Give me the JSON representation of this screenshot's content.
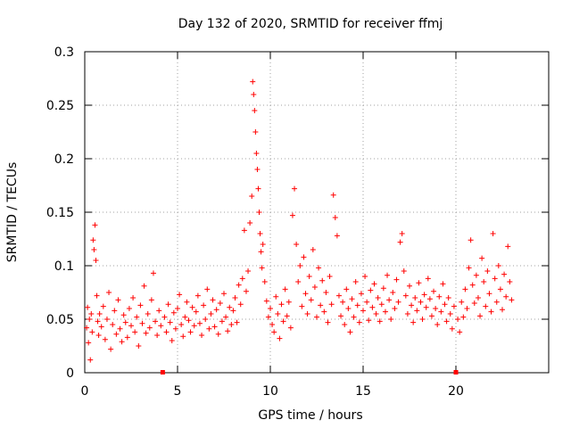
{
  "chart_data": {
    "type": "scatter",
    "title": "Day 132 of 2020, SRMTID for receiver ffmj",
    "xlabel": "GPS time / hours",
    "ylabel": "SRMTID / TECUs",
    "xlim": [
      0,
      25
    ],
    "ylim": [
      0,
      0.3
    ],
    "xticks": [
      0,
      5,
      10,
      15,
      20
    ],
    "xtick_labels": [
      "0",
      "5",
      "10",
      "15",
      "20"
    ],
    "yticks": [
      0,
      0.05,
      0.1,
      0.15,
      0.2,
      0.25,
      0.3
    ],
    "ytick_labels": [
      "0",
      "0.05",
      "0.1",
      "0.15",
      "0.2",
      "0.25",
      "0.3"
    ],
    "grid": true,
    "marker": "+",
    "color": "#ff0000",
    "gap_markers_x": [
      4.2,
      20.0
    ],
    "series": [
      {
        "name": "SRMTID",
        "points": [
          [
            0.1,
            0.042
          ],
          [
            0.15,
            0.061
          ],
          [
            0.2,
            0.028
          ],
          [
            0.25,
            0.05
          ],
          [
            0.3,
            0.012
          ],
          [
            0.35,
            0.055
          ],
          [
            0.4,
            0.038
          ],
          [
            0.45,
            0.124
          ],
          [
            0.5,
            0.115
          ],
          [
            0.55,
            0.138
          ],
          [
            0.6,
            0.105
          ],
          [
            0.65,
            0.072
          ],
          [
            0.7,
            0.048
          ],
          [
            0.75,
            0.035
          ],
          [
            0.8,
            0.055
          ],
          [
            0.9,
            0.043
          ],
          [
            1.0,
            0.062
          ],
          [
            1.1,
            0.031
          ],
          [
            1.2,
            0.05
          ],
          [
            1.3,
            0.075
          ],
          [
            1.4,
            0.022
          ],
          [
            1.5,
            0.045
          ],
          [
            1.6,
            0.058
          ],
          [
            1.7,
            0.036
          ],
          [
            1.8,
            0.068
          ],
          [
            1.9,
            0.041
          ],
          [
            2.0,
            0.029
          ],
          [
            2.1,
            0.054
          ],
          [
            2.2,
            0.047
          ],
          [
            2.3,
            0.033
          ],
          [
            2.4,
            0.06
          ],
          [
            2.5,
            0.044
          ],
          [
            2.6,
            0.07
          ],
          [
            2.7,
            0.038
          ],
          [
            2.8,
            0.052
          ],
          [
            2.9,
            0.025
          ],
          [
            3.0,
            0.063
          ],
          [
            3.1,
            0.046
          ],
          [
            3.2,
            0.081
          ],
          [
            3.3,
            0.037
          ],
          [
            3.4,
            0.055
          ],
          [
            3.5,
            0.042
          ],
          [
            3.6,
            0.068
          ],
          [
            3.7,
            0.093
          ],
          [
            3.8,
            0.048
          ],
          [
            3.9,
            0.035
          ],
          [
            4.0,
            0.058
          ],
          [
            4.1,
            0.044
          ],
          [
            4.3,
            0.052
          ],
          [
            4.4,
            0.038
          ],
          [
            4.5,
            0.064
          ],
          [
            4.6,
            0.047
          ],
          [
            4.7,
            0.03
          ],
          [
            4.8,
            0.056
          ],
          [
            4.9,
            0.041
          ],
          [
            5.0,
            0.06
          ],
          [
            5.1,
            0.073
          ],
          [
            5.2,
            0.045
          ],
          [
            5.3,
            0.034
          ],
          [
            5.4,
            0.052
          ],
          [
            5.5,
            0.066
          ],
          [
            5.6,
            0.049
          ],
          [
            5.7,
            0.038
          ],
          [
            5.8,
            0.061
          ],
          [
            5.9,
            0.044
          ],
          [
            6.0,
            0.057
          ],
          [
            6.1,
            0.072
          ],
          [
            6.2,
            0.046
          ],
          [
            6.3,
            0.035
          ],
          [
            6.4,
            0.063
          ],
          [
            6.5,
            0.05
          ],
          [
            6.6,
            0.078
          ],
          [
            6.7,
            0.041
          ],
          [
            6.8,
            0.055
          ],
          [
            6.9,
            0.068
          ],
          [
            7.0,
            0.043
          ],
          [
            7.1,
            0.059
          ],
          [
            7.2,
            0.036
          ],
          [
            7.3,
            0.065
          ],
          [
            7.4,
            0.048
          ],
          [
            7.5,
            0.074
          ],
          [
            7.6,
            0.052
          ],
          [
            7.7,
            0.039
          ],
          [
            7.8,
            0.061
          ],
          [
            7.9,
            0.045
          ],
          [
            8.0,
            0.058
          ],
          [
            8.1,
            0.07
          ],
          [
            8.2,
            0.047
          ],
          [
            8.3,
            0.082
          ],
          [
            8.4,
            0.064
          ],
          [
            8.5,
            0.088
          ],
          [
            8.6,
            0.133
          ],
          [
            8.7,
            0.076
          ],
          [
            8.8,
            0.095
          ],
          [
            8.9,
            0.14
          ],
          [
            9.0,
            0.165
          ],
          [
            9.05,
            0.272
          ],
          [
            9.1,
            0.26
          ],
          [
            9.15,
            0.245
          ],
          [
            9.2,
            0.225
          ],
          [
            9.25,
            0.205
          ],
          [
            9.3,
            0.19
          ],
          [
            9.35,
            0.172
          ],
          [
            9.4,
            0.15
          ],
          [
            9.45,
            0.13
          ],
          [
            9.5,
            0.113
          ],
          [
            9.55,
            0.098
          ],
          [
            9.6,
            0.12
          ],
          [
            9.7,
            0.085
          ],
          [
            9.8,
            0.067
          ],
          [
            9.9,
            0.052
          ],
          [
            10.0,
            0.06
          ],
          [
            10.1,
            0.045
          ],
          [
            10.2,
            0.038
          ],
          [
            10.3,
            0.071
          ],
          [
            10.4,
            0.055
          ],
          [
            10.5,
            0.032
          ],
          [
            10.6,
            0.064
          ],
          [
            10.7,
            0.048
          ],
          [
            10.8,
            0.078
          ],
          [
            10.9,
            0.053
          ],
          [
            11.0,
            0.066
          ],
          [
            11.1,
            0.042
          ],
          [
            11.2,
            0.147
          ],
          [
            11.3,
            0.172
          ],
          [
            11.4,
            0.12
          ],
          [
            11.5,
            0.085
          ],
          [
            11.6,
            0.1
          ],
          [
            11.7,
            0.062
          ],
          [
            11.8,
            0.108
          ],
          [
            11.9,
            0.074
          ],
          [
            12.0,
            0.055
          ],
          [
            12.1,
            0.09
          ],
          [
            12.2,
            0.068
          ],
          [
            12.3,
            0.115
          ],
          [
            12.4,
            0.08
          ],
          [
            12.5,
            0.052
          ],
          [
            12.6,
            0.098
          ],
          [
            12.7,
            0.063
          ],
          [
            12.8,
            0.086
          ],
          [
            12.9,
            0.057
          ],
          [
            13.0,
            0.075
          ],
          [
            13.1,
            0.047
          ],
          [
            13.2,
            0.09
          ],
          [
            13.3,
            0.064
          ],
          [
            13.4,
            0.166
          ],
          [
            13.5,
            0.145
          ],
          [
            13.6,
            0.128
          ],
          [
            13.7,
            0.072
          ],
          [
            13.8,
            0.053
          ],
          [
            13.9,
            0.066
          ],
          [
            14.0,
            0.045
          ],
          [
            14.1,
            0.078
          ],
          [
            14.2,
            0.06
          ],
          [
            14.3,
            0.038
          ],
          [
            14.4,
            0.069
          ],
          [
            14.5,
            0.052
          ],
          [
            14.6,
            0.085
          ],
          [
            14.7,
            0.063
          ],
          [
            14.8,
            0.047
          ],
          [
            14.9,
            0.074
          ],
          [
            15.0,
            0.058
          ],
          [
            15.1,
            0.09
          ],
          [
            15.2,
            0.066
          ],
          [
            15.3,
            0.049
          ],
          [
            15.4,
            0.077
          ],
          [
            15.5,
            0.061
          ],
          [
            15.6,
            0.083
          ],
          [
            15.7,
            0.055
          ],
          [
            15.8,
            0.07
          ],
          [
            15.9,
            0.048
          ],
          [
            16.0,
            0.064
          ],
          [
            16.1,
            0.079
          ],
          [
            16.2,
            0.057
          ],
          [
            16.3,
            0.091
          ],
          [
            16.4,
            0.068
          ],
          [
            16.5,
            0.05
          ],
          [
            16.6,
            0.075
          ],
          [
            16.7,
            0.06
          ],
          [
            16.8,
            0.087
          ],
          [
            16.9,
            0.066
          ],
          [
            17.0,
            0.122
          ],
          [
            17.1,
            0.13
          ],
          [
            17.2,
            0.095
          ],
          [
            17.3,
            0.072
          ],
          [
            17.4,
            0.055
          ],
          [
            17.5,
            0.081
          ],
          [
            17.6,
            0.063
          ],
          [
            17.7,
            0.047
          ],
          [
            17.8,
            0.07
          ],
          [
            17.9,
            0.058
          ],
          [
            18.0,
            0.084
          ],
          [
            18.1,
            0.066
          ],
          [
            18.2,
            0.05
          ],
          [
            18.3,
            0.073
          ],
          [
            18.4,
            0.061
          ],
          [
            18.5,
            0.088
          ],
          [
            18.6,
            0.069
          ],
          [
            18.7,
            0.053
          ],
          [
            18.8,
            0.076
          ],
          [
            18.9,
            0.06
          ],
          [
            19.0,
            0.045
          ],
          [
            19.1,
            0.071
          ],
          [
            19.2,
            0.057
          ],
          [
            19.3,
            0.083
          ],
          [
            19.4,
            0.064
          ],
          [
            19.5,
            0.048
          ],
          [
            19.6,
            0.07
          ],
          [
            19.7,
            0.055
          ],
          [
            19.8,
            0.041
          ],
          [
            19.9,
            0.062
          ],
          [
            20.1,
            0.05
          ],
          [
            20.2,
            0.038
          ],
          [
            20.3,
            0.066
          ],
          [
            20.4,
            0.052
          ],
          [
            20.5,
            0.078
          ],
          [
            20.6,
            0.06
          ],
          [
            20.7,
            0.098
          ],
          [
            20.8,
            0.124
          ],
          [
            20.9,
            0.082
          ],
          [
            21.0,
            0.065
          ],
          [
            21.1,
            0.091
          ],
          [
            21.2,
            0.07
          ],
          [
            21.3,
            0.053
          ],
          [
            21.4,
            0.107
          ],
          [
            21.5,
            0.085
          ],
          [
            21.6,
            0.062
          ],
          [
            21.7,
            0.095
          ],
          [
            21.8,
            0.074
          ],
          [
            21.9,
            0.057
          ],
          [
            22.0,
            0.13
          ],
          [
            22.1,
            0.088
          ],
          [
            22.2,
            0.066
          ],
          [
            22.3,
            0.1
          ],
          [
            22.4,
            0.078
          ],
          [
            22.5,
            0.059
          ],
          [
            22.6,
            0.092
          ],
          [
            22.7,
            0.071
          ],
          [
            22.8,
            0.118
          ],
          [
            22.9,
            0.085
          ],
          [
            23.0,
            0.068
          ]
        ]
      }
    ]
  }
}
